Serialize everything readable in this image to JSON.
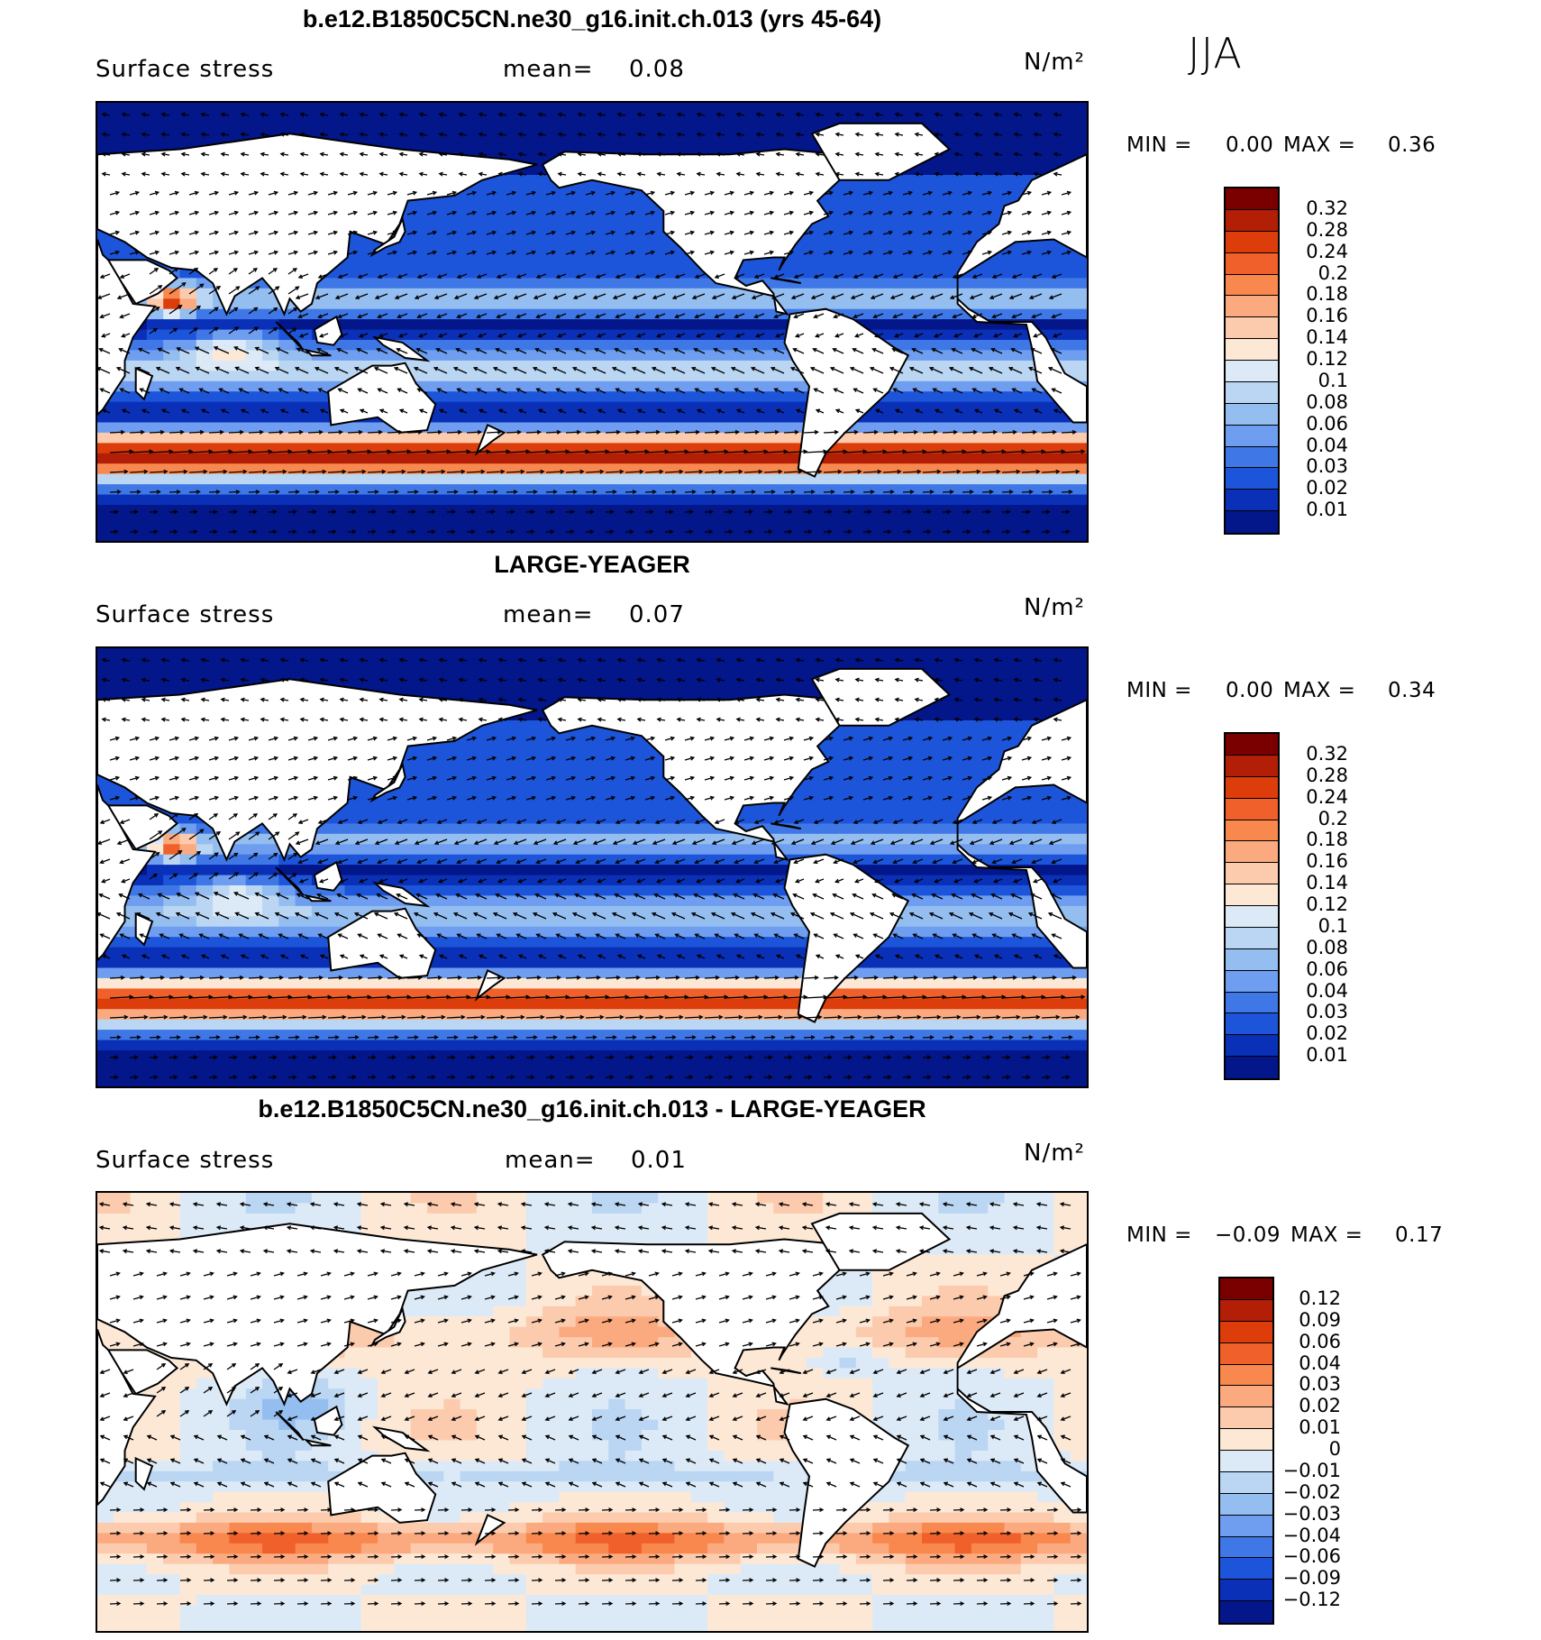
{
  "season": "JJA",
  "panels": [
    {
      "title": "b.e12.B1850C5CN.ne30_g16.init.ch.013 (yrs 45-64)",
      "variable": "Surface stress",
      "mean_label": "mean=",
      "mean_value": "0.08",
      "units": "N/m²",
      "min_label": "MIN =",
      "min_value": "0.00",
      "max_label": "MAX =",
      "max_value": "0.36",
      "colorbar_levels": [
        "0.32",
        "0.28",
        "0.24",
        "0.2",
        "0.18",
        "0.16",
        "0.14",
        "0.12",
        "0.1",
        "0.08",
        "0.06",
        "0.04",
        "0.03",
        "0.02",
        "0.01"
      ]
    },
    {
      "title": "LARGE-YEAGER",
      "variable": "Surface stress",
      "mean_label": "mean=",
      "mean_value": "0.07",
      "units": "N/m²",
      "min_label": "MIN =",
      "min_value": "0.00",
      "max_label": "MAX =",
      "max_value": "0.34",
      "colorbar_levels": [
        "0.32",
        "0.28",
        "0.24",
        "0.2",
        "0.18",
        "0.16",
        "0.14",
        "0.12",
        "0.1",
        "0.08",
        "0.06",
        "0.04",
        "0.03",
        "0.02",
        "0.01"
      ]
    },
    {
      "title": "b.e12.B1850C5CN.ne30_g16.init.ch.013 - LARGE-YEAGER",
      "variable": "Surface stress",
      "mean_label": "mean=",
      "mean_value": "0.01",
      "units": "N/m²",
      "min_label": "MIN =",
      "min_value": "−0.09",
      "max_label": "MAX =",
      "max_value": "0.17",
      "colorbar_levels": [
        "0.12",
        "0.09",
        "0.06",
        "0.04",
        "0.03",
        "0.02",
        "0.01",
        "0",
        "−0.01",
        "−0.02",
        "−0.03",
        "−0.04",
        "−0.06",
        "−0.09",
        "−0.12"
      ]
    }
  ],
  "colors": {
    "full_scale": [
      "#7a0000",
      "#b21e06",
      "#dc3d0a",
      "#f0602a",
      "#f8884e",
      "#fbaa80",
      "#fccbad",
      "#fde8d6",
      "#dceaf7",
      "#bad6f3",
      "#94bdf0",
      "#6f9ef0",
      "#3f78e6",
      "#1d55da",
      "#0b30b8",
      "#03168a"
    ],
    "diff_scale": [
      "#7a0000",
      "#b21e06",
      "#dc3d0a",
      "#f0602a",
      "#f8884e",
      "#fbaa80",
      "#fccbad",
      "#fde8d6",
      "#dceaf7",
      "#bad6f3",
      "#94bdf0",
      "#6f9ef0",
      "#3f78e6",
      "#1d55da",
      "#0b30b8",
      "#03168a"
    ],
    "land": "#ffffff",
    "coast": "#000000"
  }
}
